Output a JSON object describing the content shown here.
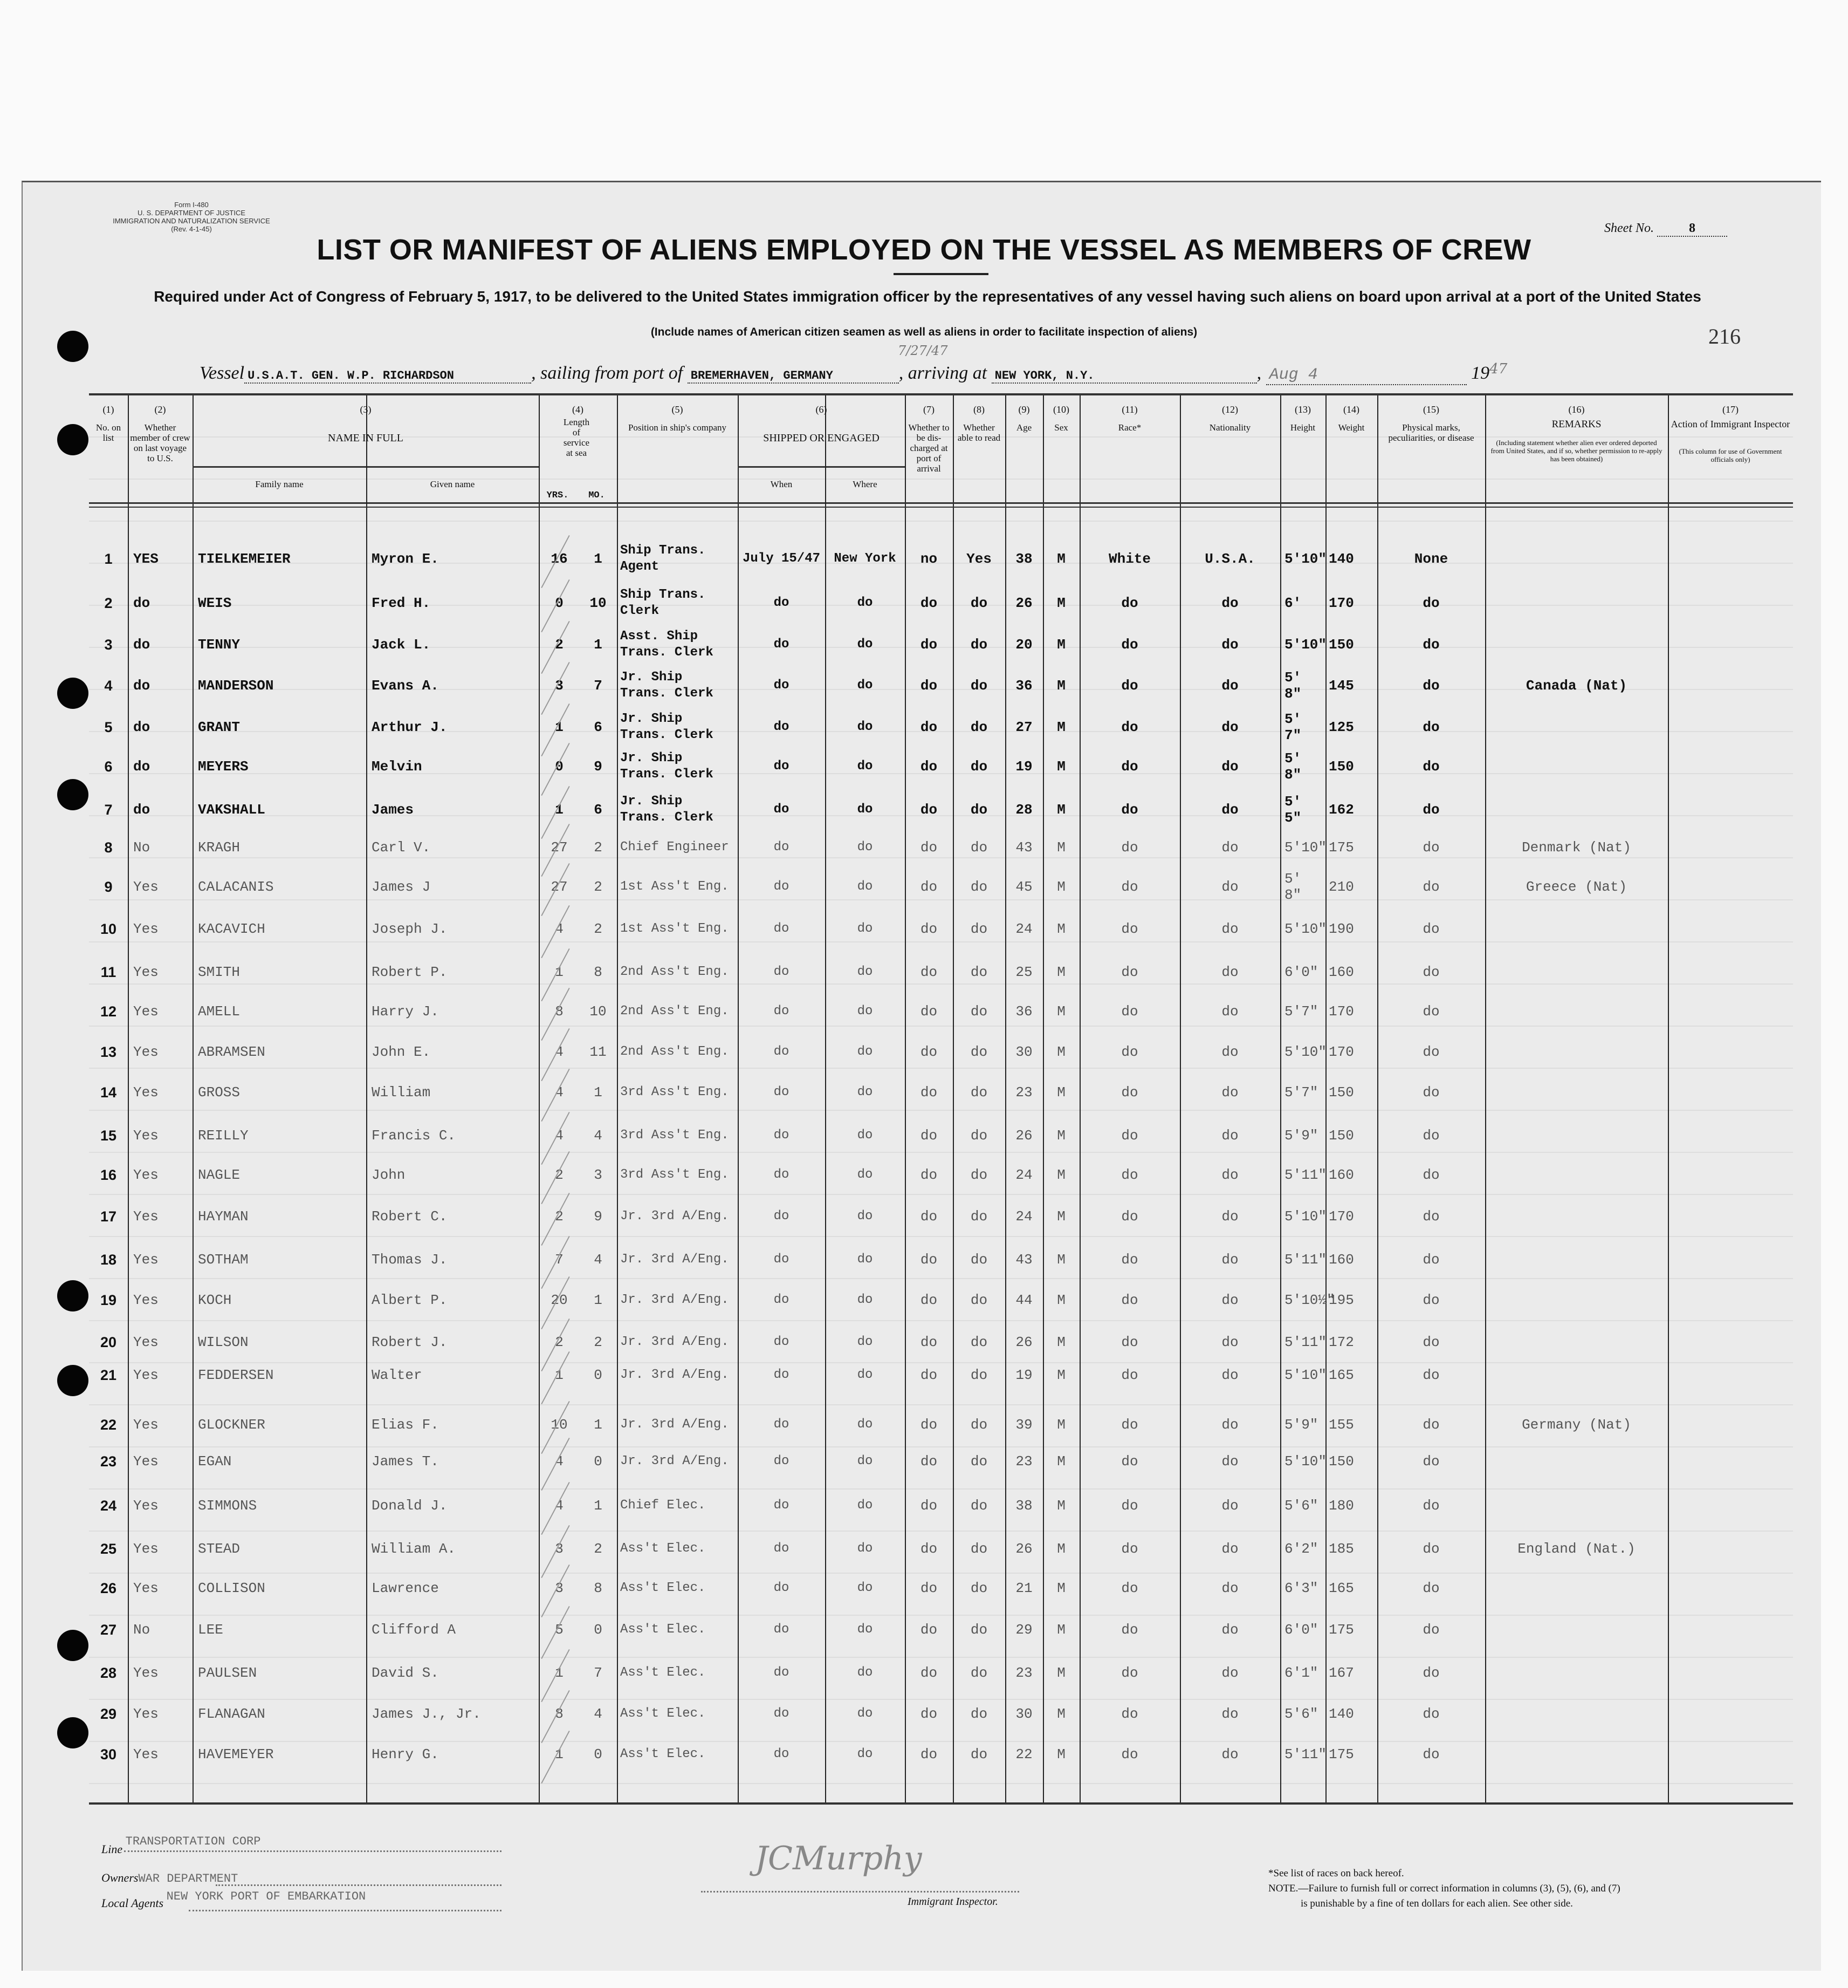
{
  "form": {
    "form_number": "Form I-480",
    "department": "U. S. DEPARTMENT OF JUSTICE",
    "service": "IMMIGRATION AND NATURALIZATION SERVICE",
    "revision": "(Rev. 4-1-45)",
    "sheet_label": "Sheet No.",
    "sheet_number": "8",
    "title": "LIST OR MANIFEST OF ALIENS EMPLOYED ON THE VESSEL AS MEMBERS OF CREW",
    "subtitle": "Required under Act of Congress of February 5, 1917, to be delivered to the United States immigration officer by the representatives of any vessel having such aliens on board upon arrival at a port of the United States",
    "instruction": "(Include names of American citizen seamen as well as aliens in order to facilitate inspection of aliens)",
    "stamp_number": "216"
  },
  "voyage": {
    "vessel_label": "Vessel",
    "vessel": "U.S.A.T. GEN. W.P. RICHARDSON",
    "sailing_label": ", sailing from port of",
    "port_from": "BREMERHAVEN, GERMANY",
    "handwritten_date": "7/27/47",
    "arriving_label": ", arriving at",
    "port_to": "NEW YORK, N.Y.",
    "arrival_date_handwritten": "Aug 4",
    "year_prefix": "19",
    "year_handwritten": "47"
  },
  "columns": [
    {
      "num": "(1)",
      "label": "No. on list"
    },
    {
      "num": "(2)",
      "label": "Whether member of crew on last voyage to U.S."
    },
    {
      "num": "(3)",
      "label": "NAME IN FULL",
      "sub": [
        "Family name",
        "Given name"
      ]
    },
    {
      "num": "(4)",
      "label": "Length of service at sea",
      "sub": [
        "YRS.",
        "MO."
      ]
    },
    {
      "num": "(5)",
      "label": "Position in ship's company"
    },
    {
      "num": "(6)",
      "label": "SHIPPED OR ENGAGED",
      "sub": [
        "When",
        "Where"
      ]
    },
    {
      "num": "(7)",
      "label": "Whether to be dis-charged at port of arrival"
    },
    {
      "num": "(8)",
      "label": "Whether able to read"
    },
    {
      "num": "(9)",
      "label": "Age"
    },
    {
      "num": "(10)",
      "label": "Sex"
    },
    {
      "num": "(11)",
      "label": "Race*"
    },
    {
      "num": "(12)",
      "label": "Nationality"
    },
    {
      "num": "(13)",
      "label": "Height"
    },
    {
      "num": "(14)",
      "label": "Weight"
    },
    {
      "num": "(15)",
      "label": "Physical marks, peculiarities, or disease"
    },
    {
      "num": "(16)",
      "label": "REMARKS",
      "note": "(Including statement whether alien ever ordered deported from United States, and if so, whether permission to re-apply has been obtained)"
    },
    {
      "num": "(17)",
      "label": "Action of Immigrant Inspector",
      "note": "(This column for use of Government officials only)"
    }
  ],
  "rows": [
    {
      "no": "1",
      "last": "YES",
      "family": "TIELKEMEIER",
      "given": "Myron E.",
      "yrs": "16",
      "mo": "1",
      "position": "Ship Trans.\nAgent",
      "when": "July 15/47",
      "where": "New York",
      "disch": "no",
      "read": "Yes",
      "age": "38",
      "sex": "M",
      "race": "White",
      "nat": "U.S.A.",
      "height": "5'10\"",
      "weight": "140",
      "marks": "None",
      "remarks": ""
    },
    {
      "no": "2",
      "last": "do",
      "family": "WEIS",
      "given": "Fred H.",
      "yrs": "0",
      "mo": "10",
      "position": "Ship Trans.\nClerk",
      "when": "do",
      "where": "do",
      "disch": "do",
      "read": "do",
      "age": "26",
      "sex": "M",
      "race": "do",
      "nat": "do",
      "height": "6'",
      "weight": "170",
      "marks": "do",
      "remarks": ""
    },
    {
      "no": "3",
      "last": "do",
      "family": "TENNY",
      "given": "Jack L.",
      "yrs": "2",
      "mo": "1",
      "position": "Asst. Ship\nTrans. Clerk",
      "when": "do",
      "where": "do",
      "disch": "do",
      "read": "do",
      "age": "20",
      "sex": "M",
      "race": "do",
      "nat": "do",
      "height": "5'10\"",
      "weight": "150",
      "marks": "do",
      "remarks": ""
    },
    {
      "no": "4",
      "last": "do",
      "family": "MANDERSON",
      "given": "Evans A.",
      "yrs": "3",
      "mo": "7",
      "position": "Jr. Ship\nTrans. Clerk",
      "when": "do",
      "where": "do",
      "disch": "do",
      "read": "do",
      "age": "36",
      "sex": "M",
      "race": "do",
      "nat": "do",
      "height": "5' 8\"",
      "weight": "145",
      "marks": "do",
      "remarks": "Canada (Nat)"
    },
    {
      "no": "5",
      "last": "do",
      "family": "GRANT",
      "given": "Arthur J.",
      "yrs": "1",
      "mo": "6",
      "position": "Jr. Ship\nTrans. Clerk",
      "when": "do",
      "where": "do",
      "disch": "do",
      "read": "do",
      "age": "27",
      "sex": "M",
      "race": "do",
      "nat": "do",
      "height": "5' 7\"",
      "weight": "125",
      "marks": "do",
      "remarks": ""
    },
    {
      "no": "6",
      "last": "do",
      "family": "MEYERS",
      "given": "Melvin",
      "yrs": "0",
      "mo": "9",
      "position": "Jr. Ship\nTrans. Clerk",
      "when": "do",
      "where": "do",
      "disch": "do",
      "read": "do",
      "age": "19",
      "sex": "M",
      "race": "do",
      "nat": "do",
      "height": "5' 8\"",
      "weight": "150",
      "marks": "do",
      "remarks": ""
    },
    {
      "no": "7",
      "last": "do",
      "family": "VAKSHALL",
      "given": "James",
      "yrs": "1",
      "mo": "6",
      "position": "Jr. Ship\nTrans. Clerk",
      "when": "do",
      "where": "do",
      "disch": "do",
      "read": "do",
      "age": "28",
      "sex": "M",
      "race": "do",
      "nat": "do",
      "height": "5' 5\"",
      "weight": "162",
      "marks": "do",
      "remarks": ""
    },
    {
      "no": "8",
      "last": "No",
      "family": "KRAGH",
      "given": "Carl V.",
      "yrs": "27",
      "mo": "2",
      "position": "Chief Engineer",
      "when": "do",
      "where": "do",
      "disch": "do",
      "read": "do",
      "age": "43",
      "sex": "M",
      "race": "do",
      "nat": "do",
      "height": "5'10\"",
      "weight": "175",
      "marks": "do",
      "remarks": "Denmark (Nat)"
    },
    {
      "no": "9",
      "last": "Yes",
      "family": "CALACANIS",
      "given": "James J",
      "yrs": "27",
      "mo": "2",
      "position": "1st Ass't Eng.",
      "when": "do",
      "where": "do",
      "disch": "do",
      "read": "do",
      "age": "45",
      "sex": "M",
      "race": "do",
      "nat": "do",
      "height": "5' 8\"",
      "weight": "210",
      "marks": "do",
      "remarks": "Greece (Nat)"
    },
    {
      "no": "10",
      "last": "Yes",
      "family": "KACAVICH",
      "given": "Joseph J.",
      "yrs": "4",
      "mo": "2",
      "position": "1st Ass't Eng.",
      "when": "do",
      "where": "do",
      "disch": "do",
      "read": "do",
      "age": "24",
      "sex": "M",
      "race": "do",
      "nat": "do",
      "height": "5'10\"",
      "weight": "190",
      "marks": "do",
      "remarks": ""
    },
    {
      "no": "11",
      "last": "Yes",
      "family": "SMITH",
      "given": "Robert P.",
      "yrs": "1",
      "mo": "8",
      "position": "2nd Ass't Eng.",
      "when": "do",
      "where": "do",
      "disch": "do",
      "read": "do",
      "age": "25",
      "sex": "M",
      "race": "do",
      "nat": "do",
      "height": "6'0\"",
      "weight": "160",
      "marks": "do",
      "remarks": ""
    },
    {
      "no": "12",
      "last": "Yes",
      "family": "AMELL",
      "given": "Harry J.",
      "yrs": "8",
      "mo": "10",
      "position": "2nd Ass't Eng.",
      "when": "do",
      "where": "do",
      "disch": "do",
      "read": "do",
      "age": "36",
      "sex": "M",
      "race": "do",
      "nat": "do",
      "height": "5'7\"",
      "weight": "170",
      "marks": "do",
      "remarks": ""
    },
    {
      "no": "13",
      "last": "Yes",
      "family": "ABRAMSEN",
      "given": "John E.",
      "yrs": "4",
      "mo": "11",
      "position": "2nd Ass't Eng.",
      "when": "do",
      "where": "do",
      "disch": "do",
      "read": "do",
      "age": "30",
      "sex": "M",
      "race": "do",
      "nat": "do",
      "height": "5'10\"",
      "weight": "170",
      "marks": "do",
      "remarks": ""
    },
    {
      "no": "14",
      "last": "Yes",
      "family": "GROSS",
      "given": "William",
      "yrs": "4",
      "mo": "1",
      "position": "3rd Ass't Eng.",
      "when": "do",
      "where": "do",
      "disch": "do",
      "read": "do",
      "age": "23",
      "sex": "M",
      "race": "do",
      "nat": "do",
      "height": "5'7\"",
      "weight": "150",
      "marks": "do",
      "remarks": ""
    },
    {
      "no": "15",
      "last": "Yes",
      "family": "REILLY",
      "given": "Francis C.",
      "yrs": "4",
      "mo": "4",
      "position": "3rd Ass't Eng.",
      "when": "do",
      "where": "do",
      "disch": "do",
      "read": "do",
      "age": "26",
      "sex": "M",
      "race": "do",
      "nat": "do",
      "height": "5'9\"",
      "weight": "150",
      "marks": "do",
      "remarks": ""
    },
    {
      "no": "16",
      "last": "Yes",
      "family": "NAGLE",
      "given": "John",
      "yrs": "2",
      "mo": "3",
      "position": "3rd Ass't Eng.",
      "when": "do",
      "where": "do",
      "disch": "do",
      "read": "do",
      "age": "24",
      "sex": "M",
      "race": "do",
      "nat": "do",
      "height": "5'11\"",
      "weight": "160",
      "marks": "do",
      "remarks": ""
    },
    {
      "no": "17",
      "last": "Yes",
      "family": "HAYMAN",
      "given": "Robert C.",
      "yrs": "2",
      "mo": "9",
      "position": "Jr. 3rd A/Eng.",
      "when": "do",
      "where": "do",
      "disch": "do",
      "read": "do",
      "age": "24",
      "sex": "M",
      "race": "do",
      "nat": "do",
      "height": "5'10\"",
      "weight": "170",
      "marks": "do",
      "remarks": ""
    },
    {
      "no": "18",
      "last": "Yes",
      "family": "SOTHAM",
      "given": "Thomas J.",
      "yrs": "7",
      "mo": "4",
      "position": "Jr. 3rd A/Eng.",
      "when": "do",
      "where": "do",
      "disch": "do",
      "read": "do",
      "age": "43",
      "sex": "M",
      "race": "do",
      "nat": "do",
      "height": "5'11\"",
      "weight": "160",
      "marks": "do",
      "remarks": ""
    },
    {
      "no": "19",
      "last": "Yes",
      "family": "KOCH",
      "given": "Albert P.",
      "yrs": "20",
      "mo": "1",
      "position": "Jr. 3rd A/Eng.",
      "when": "do",
      "where": "do",
      "disch": "do",
      "read": "do",
      "age": "44",
      "sex": "M",
      "race": "do",
      "nat": "do",
      "height": "5'10½\"",
      "weight": "195",
      "marks": "do",
      "remarks": ""
    },
    {
      "no": "20",
      "last": "Yes",
      "family": "WILSON",
      "given": "Robert J.",
      "yrs": "2",
      "mo": "2",
      "position": "Jr. 3rd A/Eng.",
      "when": "do",
      "where": "do",
      "disch": "do",
      "read": "do",
      "age": "26",
      "sex": "M",
      "race": "do",
      "nat": "do",
      "height": "5'11\"",
      "weight": "172",
      "marks": "do",
      "remarks": ""
    },
    {
      "no": "21",
      "last": "Yes",
      "family": "FEDDERSEN",
      "given": "Walter",
      "yrs": "1",
      "mo": "0",
      "position": "Jr. 3rd A/Eng.",
      "when": "do",
      "where": "do",
      "disch": "do",
      "read": "do",
      "age": "19",
      "sex": "M",
      "race": "do",
      "nat": "do",
      "height": "5'10\"",
      "weight": "165",
      "marks": "do",
      "remarks": ""
    },
    {
      "no": "22",
      "last": "Yes",
      "family": "GLOCKNER",
      "given": "Elias F.",
      "yrs": "10",
      "mo": "1",
      "position": "Jr. 3rd A/Eng.",
      "when": "do",
      "where": "do",
      "disch": "do",
      "read": "do",
      "age": "39",
      "sex": "M",
      "race": "do",
      "nat": "do",
      "height": "5'9\"",
      "weight": "155",
      "marks": "do",
      "remarks": "Germany (Nat)"
    },
    {
      "no": "23",
      "last": "Yes",
      "family": "EGAN",
      "given": "James T.",
      "yrs": "4",
      "mo": "0",
      "position": "Jr. 3rd A/Eng.",
      "when": "do",
      "where": "do",
      "disch": "do",
      "read": "do",
      "age": "23",
      "sex": "M",
      "race": "do",
      "nat": "do",
      "height": "5'10\"",
      "weight": "150",
      "marks": "do",
      "remarks": ""
    },
    {
      "no": "24",
      "last": "Yes",
      "family": "SIMMONS",
      "given": "Donald J.",
      "yrs": "4",
      "mo": "1",
      "position": "Chief Elec.",
      "when": "do",
      "where": "do",
      "disch": "do",
      "read": "do",
      "age": "38",
      "sex": "M",
      "race": "do",
      "nat": "do",
      "height": "5'6\"",
      "weight": "180",
      "marks": "do",
      "remarks": ""
    },
    {
      "no": "25",
      "last": "Yes",
      "family": "STEAD",
      "given": "William A.",
      "yrs": "3",
      "mo": "2",
      "position": "Ass't Elec.",
      "when": "do",
      "where": "do",
      "disch": "do",
      "read": "do",
      "age": "26",
      "sex": "M",
      "race": "do",
      "nat": "do",
      "height": "6'2\"",
      "weight": "185",
      "marks": "do",
      "remarks": "England (Nat.)"
    },
    {
      "no": "26",
      "last": "Yes",
      "family": "COLLISON",
      "given": "Lawrence",
      "yrs": "3",
      "mo": "8",
      "position": "Ass't Elec.",
      "when": "do",
      "where": "do",
      "disch": "do",
      "read": "do",
      "age": "21",
      "sex": "M",
      "race": "do",
      "nat": "do",
      "height": "6'3\"",
      "weight": "165",
      "marks": "do",
      "remarks": ""
    },
    {
      "no": "27",
      "last": "No",
      "family": "LEE",
      "given": "Clifford A",
      "yrs": "5",
      "mo": "0",
      "position": "Ass't Elec.",
      "when": "do",
      "where": "do",
      "disch": "do",
      "read": "do",
      "age": "29",
      "sex": "M",
      "race": "do",
      "nat": "do",
      "height": "6'0\"",
      "weight": "175",
      "marks": "do",
      "remarks": ""
    },
    {
      "no": "28",
      "last": "Yes",
      "family": "PAULSEN",
      "given": "David S.",
      "yrs": "1",
      "mo": "7",
      "position": "Ass't Elec.",
      "when": "do",
      "where": "do",
      "disch": "do",
      "read": "do",
      "age": "23",
      "sex": "M",
      "race": "do",
      "nat": "do",
      "height": "6'1\"",
      "weight": "167",
      "marks": "do",
      "remarks": ""
    },
    {
      "no": "29",
      "last": "Yes",
      "family": "FLANAGAN",
      "given": "James J., Jr.",
      "yrs": "8",
      "mo": "4",
      "position": "Ass't Elec.",
      "when": "do",
      "where": "do",
      "disch": "do",
      "read": "do",
      "age": "30",
      "sex": "M",
      "race": "do",
      "nat": "do",
      "height": "5'6\"",
      "weight": "140",
      "marks": "do",
      "remarks": ""
    },
    {
      "no": "30",
      "last": "Yes",
      "family": "HAVEMEYER",
      "given": "Henry G.",
      "yrs": "1",
      "mo": "0",
      "position": "Ass't Elec.",
      "when": "do",
      "where": "do",
      "disch": "do",
      "read": "do",
      "age": "22",
      "sex": "M",
      "race": "do",
      "nat": "do",
      "height": "5'11\"",
      "weight": "175",
      "marks": "do",
      "remarks": ""
    }
  ],
  "footer": {
    "line_label": "Line",
    "line_value": "TRANSPORTATION CORP",
    "owners_label": "Owners",
    "owners_value": "WAR DEPARTMENT",
    "agents_label": "Local Agents",
    "agents_value": "NEW YORK PORT OF EMBARKATION",
    "signature": "JCMurphy",
    "inspector_label": "Immigrant Inspector.",
    "races_note": "*See list of races on back hereof.",
    "note_1": "NOTE.—Failure to furnish full or correct information in columns (3), (5), (6), and (7)",
    "note_2": "is punishable by a fine of ten dollars for each alien.  See other side."
  }
}
